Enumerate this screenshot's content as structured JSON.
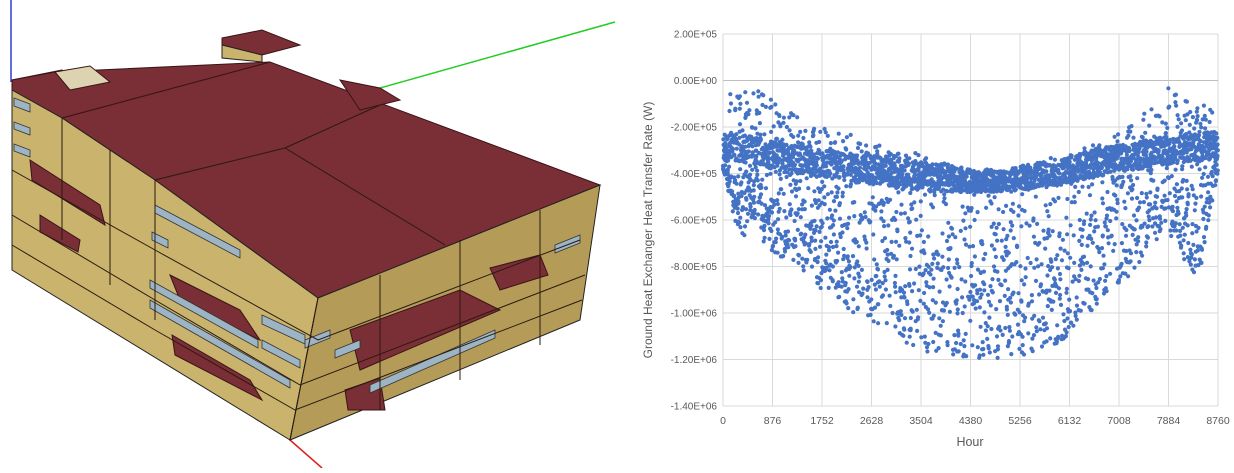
{
  "colors": {
    "roof": "#7a2e35",
    "roof_edge": "#3a1418",
    "wall": "#c9b36d",
    "wall_shade": "#b49c58",
    "window": "#9db4c4",
    "axis_x": "#e02020",
    "axis_y": "#22cc22",
    "axis_z": "#2a3fd0",
    "series": "#4472c4",
    "grid": "#d9d9d9"
  },
  "chart_data": {
    "type": "scatter",
    "ylabel": "Ground Heat Exchanger Heat Transfer Rate (W)",
    "xlabel": "Hour",
    "x_ticks": [
      "0",
      "876",
      "1752",
      "2628",
      "3504",
      "4380",
      "5256",
      "6132",
      "7008",
      "7884",
      "8760"
    ],
    "y_ticks": [
      "2.00E+05",
      "0.00E+00",
      "-2.00E+05",
      "-4.00E+05",
      "-6.00E+05",
      "-8.00E+05",
      "-1.00E+06",
      "-1.20E+06",
      "-1.40E+06"
    ],
    "xlim": [
      0,
      8760
    ],
    "ylim": [
      -1400000,
      200000
    ],
    "grid": true,
    "series": [
      {
        "values_note": "",
        "x": [
          0,
          120,
          240,
          360,
          480,
          600,
          720,
          876,
          1000,
          1200,
          1400,
          1600,
          1752,
          1900,
          2100,
          2300,
          2500,
          2628,
          2800,
          3000,
          3200,
          3400,
          3504,
          3700,
          3900,
          4100,
          4380,
          4500,
          4700,
          4900,
          5100,
          5256,
          5400,
          5600,
          5800,
          6000,
          6132,
          6300,
          6500,
          6700,
          6900,
          7008,
          7200,
          7400,
          7600,
          7884,
          8000,
          8200,
          8400,
          8600,
          8760
        ],
        "upper": [
          -180000,
          -20000,
          -10000,
          -60000,
          -20000,
          -40000,
          -50000,
          -30000,
          -150000,
          -100000,
          -150000,
          -180000,
          -200000,
          -220000,
          -150000,
          -250000,
          -250000,
          -230000,
          -280000,
          -300000,
          -320000,
          -310000,
          -310000,
          -340000,
          -350000,
          -370000,
          -380000,
          -390000,
          -380000,
          -390000,
          -380000,
          -360000,
          -360000,
          -350000,
          -330000,
          -340000,
          -320000,
          -300000,
          -280000,
          -270000,
          -250000,
          -220000,
          -200000,
          -140000,
          -120000,
          -30000,
          -50000,
          -80000,
          -100000,
          -110000,
          -150000
        ],
        "band_low": [
          -360000,
          -340000,
          -350000,
          -350000,
          -360000,
          -360000,
          -370000,
          -380000,
          -390000,
          -400000,
          -400000,
          -410000,
          -420000,
          -420000,
          -430000,
          -440000,
          -440000,
          -450000,
          -450000,
          -460000,
          -470000,
          -470000,
          -470000,
          -480000,
          -480000,
          -480000,
          -480000,
          -480000,
          -480000,
          -480000,
          -480000,
          -470000,
          -470000,
          -460000,
          -460000,
          -450000,
          -440000,
          -430000,
          -420000,
          -410000,
          -400000,
          -400000,
          -390000,
          -380000,
          -370000,
          -360000,
          -360000,
          -350000,
          -350000,
          -340000,
          -340000
        ],
        "lower": [
          -380000,
          -500000,
          -650000,
          -700000,
          -600000,
          -620000,
          -700000,
          -750000,
          -760000,
          -780000,
          -820000,
          -850000,
          -900000,
          -920000,
          -950000,
          -1000000,
          -1020000,
          -1050000,
          -1060000,
          -1100000,
          -1120000,
          -1150000,
          -1160000,
          -1180000,
          -1190000,
          -1200000,
          -1200000,
          -1200000,
          -1200000,
          -1195000,
          -1190000,
          -1190000,
          -1180000,
          -1160000,
          -1150000,
          -1120000,
          -1100000,
          -1050000,
          -1000000,
          -950000,
          -900000,
          -880000,
          -850000,
          -780000,
          -700000,
          -700000,
          -650000,
          -800000,
          -880000,
          -600000,
          -400000
        ]
      }
    ]
  }
}
